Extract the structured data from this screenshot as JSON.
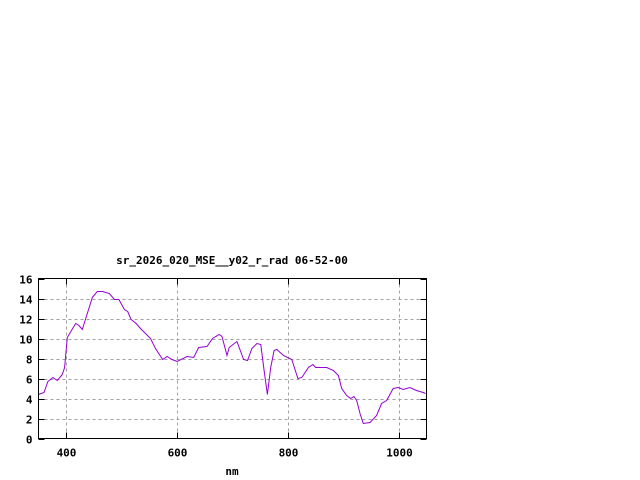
{
  "chart_data": {
    "type": "line",
    "title": "sr_2026_020_MSE__y02_r_rad 06-52-00",
    "xlabel": "nm",
    "ylabel": "",
    "xlim": [
      350,
      1050
    ],
    "ylim": [
      0,
      16
    ],
    "xticks": [
      400,
      600,
      800,
      1000
    ],
    "yticks": [
      0,
      2,
      4,
      6,
      8,
      10,
      12,
      14,
      16
    ],
    "grid": true,
    "series_color": "#9400d3",
    "x": [
      350,
      360,
      367,
      376,
      384,
      393,
      397,
      402,
      417,
      423,
      429,
      438,
      447,
      456,
      466,
      478,
      487,
      495,
      505,
      511,
      517,
      526,
      534,
      543,
      552,
      561,
      574,
      582,
      591,
      600,
      618,
      630,
      639,
      654,
      664,
      676,
      681,
      690,
      694,
      708,
      712,
      720,
      727,
      735,
      744,
      751,
      757,
      763,
      769,
      775,
      780,
      792,
      807,
      818,
      825,
      837,
      845,
      850,
      870,
      882,
      891,
      897,
      906,
      913,
      919,
      924,
      930,
      936,
      948,
      960,
      969,
      978,
      990,
      999,
      1008,
      1020,
      1032,
      1044,
      1048
    ],
    "y": [
      4.4,
      4.6,
      5.7,
      6.1,
      5.8,
      6.4,
      7.1,
      10.1,
      11.5,
      11.3,
      10.9,
      12.5,
      14.1,
      14.7,
      14.7,
      14.5,
      13.9,
      13.9,
      12.9,
      12.7,
      11.9,
      11.5,
      11.0,
      10.5,
      10.0,
      9.0,
      7.9,
      8.2,
      7.9,
      7.7,
      8.2,
      8.1,
      9.1,
      9.2,
      10.0,
      10.4,
      10.2,
      8.3,
      9.1,
      9.7,
      9.1,
      7.9,
      7.8,
      9.0,
      9.5,
      9.4,
      6.8,
      4.4,
      7.1,
      8.8,
      8.9,
      8.3,
      7.9,
      6.0,
      6.1,
      7.1,
      7.4,
      7.1,
      7.1,
      6.8,
      6.3,
      5.0,
      4.3,
      4.0,
      4.2,
      3.8,
      2.5,
      1.5,
      1.6,
      2.3,
      3.5,
      3.8,
      5.0,
      5.1,
      4.9,
      5.1,
      4.8,
      4.6,
      4.5
    ]
  }
}
